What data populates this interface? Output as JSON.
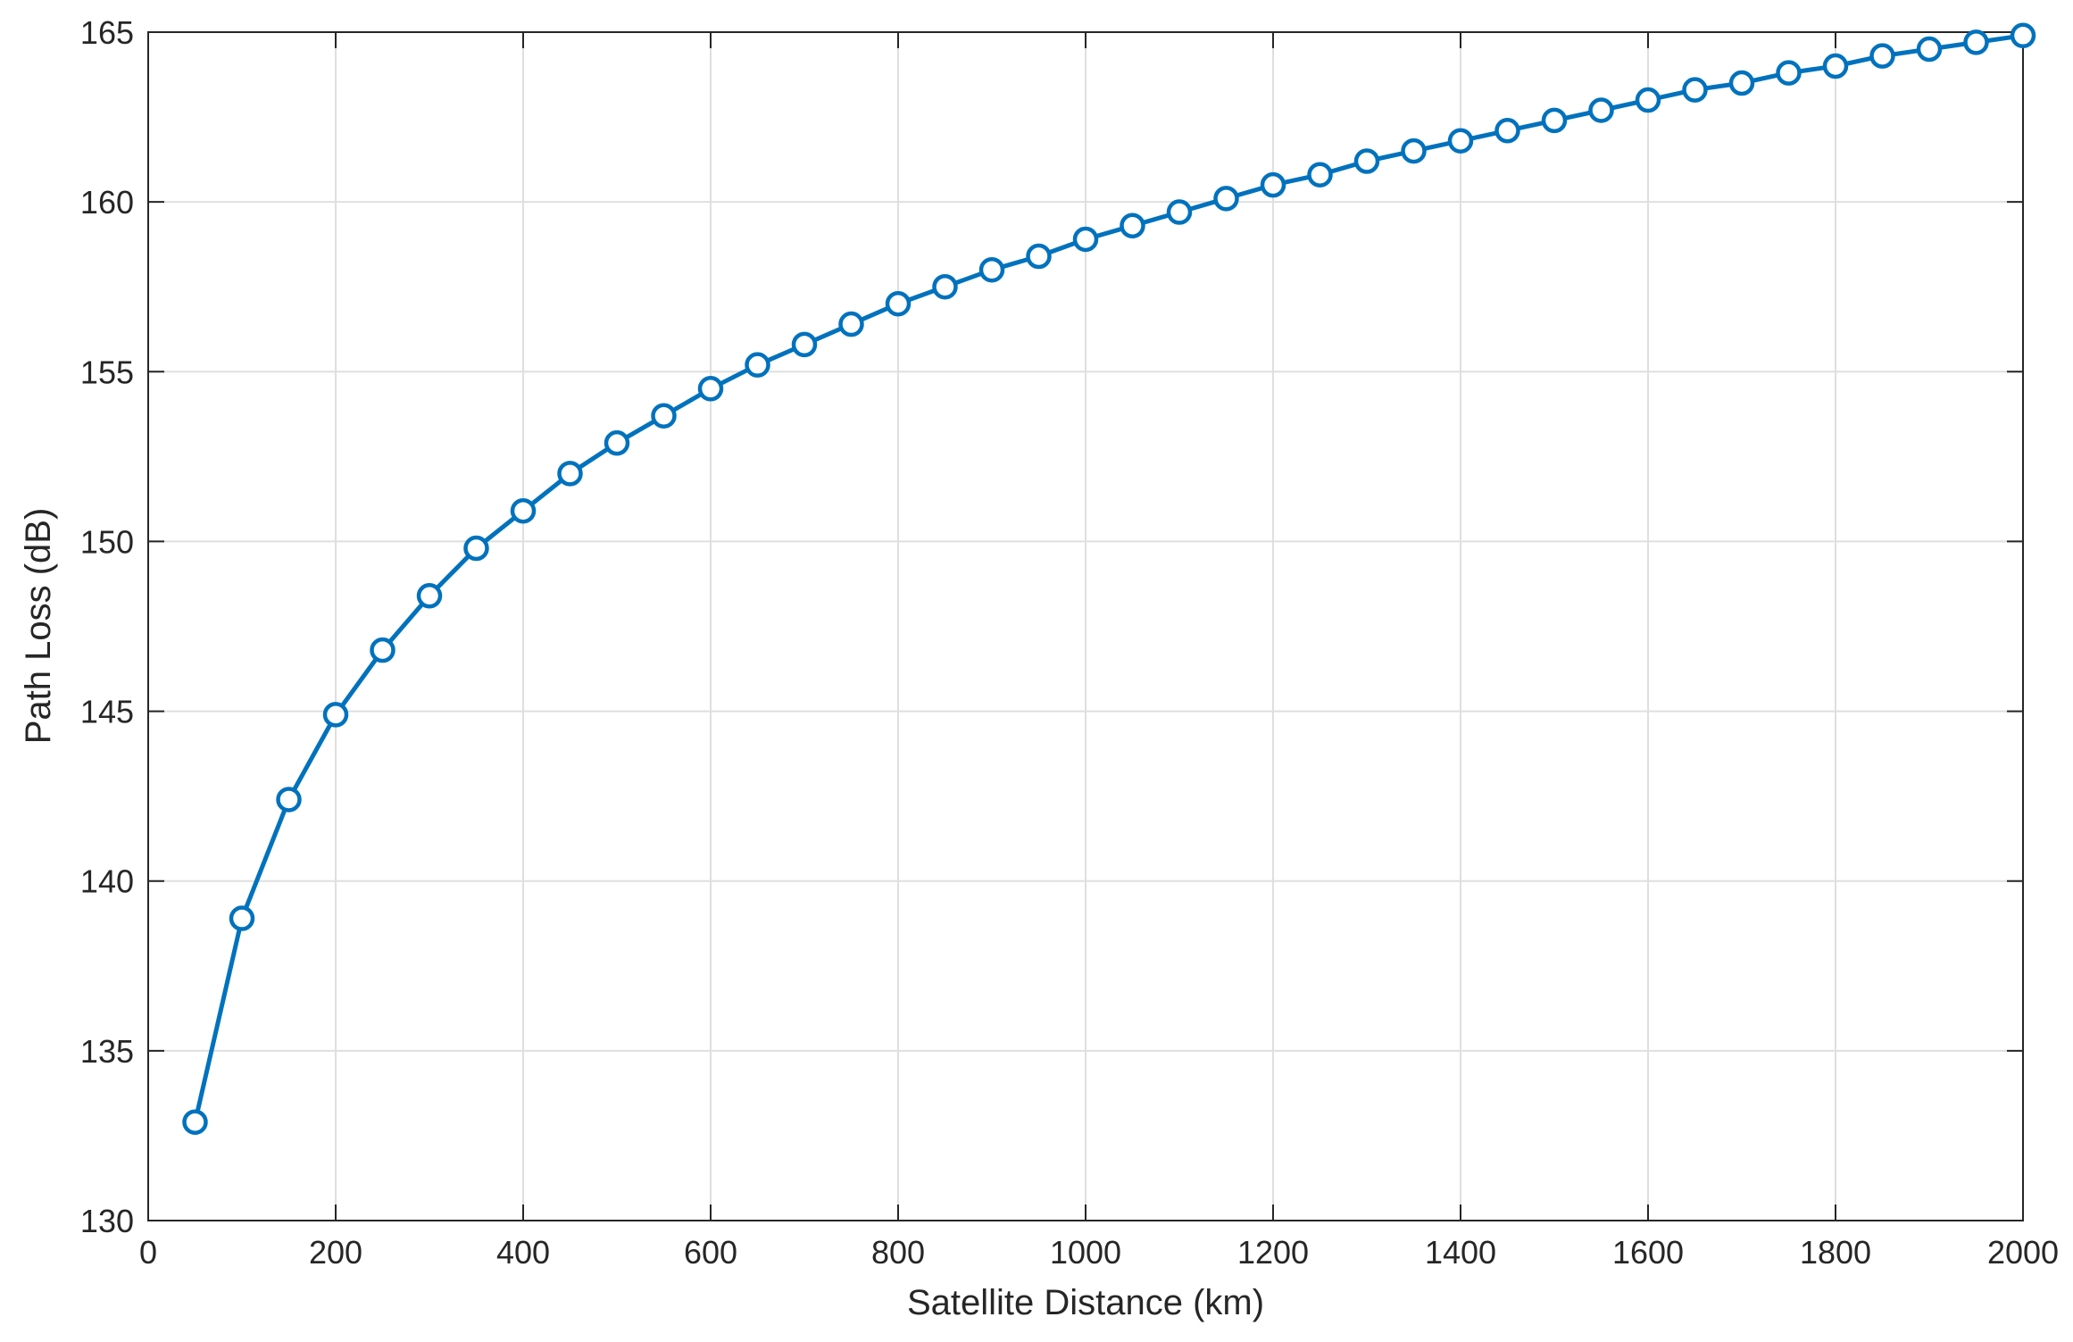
{
  "chart_data": {
    "type": "line",
    "title": "",
    "xlabel": "Satellite Distance (km)",
    "ylabel": "Path Loss (dB)",
    "xlim": [
      0,
      2000
    ],
    "ylim": [
      130,
      165
    ],
    "xticks": [
      "0",
      "200",
      "400",
      "600",
      "800",
      "1000",
      "1200",
      "1400",
      "1600",
      "1800",
      "2000"
    ],
    "yticks": [
      "130",
      "135",
      "140",
      "145",
      "150",
      "155",
      "160",
      "165"
    ],
    "grid": true,
    "legend": "none",
    "series": [
      {
        "color": "#0072BD",
        "marker": "circle",
        "x": [
          50,
          100,
          150,
          200,
          250,
          300,
          350,
          400,
          450,
          500,
          550,
          600,
          650,
          700,
          750,
          800,
          850,
          900,
          950,
          1000,
          1050,
          1100,
          1150,
          1200,
          1250,
          1300,
          1350,
          1400,
          1450,
          1500,
          1550,
          1600,
          1650,
          1700,
          1750,
          1800,
          1850,
          1900,
          1950,
          2000
        ],
        "y": [
          132.9,
          138.9,
          142.4,
          144.9,
          146.8,
          148.4,
          149.8,
          150.9,
          152.0,
          152.9,
          153.7,
          154.5,
          155.2,
          155.8,
          156.4,
          157.0,
          157.5,
          158.0,
          158.4,
          158.9,
          159.3,
          159.7,
          160.1,
          160.5,
          160.8,
          161.2,
          161.5,
          161.8,
          162.1,
          162.4,
          162.7,
          163.0,
          163.3,
          163.5,
          163.8,
          164.0,
          164.3,
          164.5,
          164.7,
          164.9
        ]
      }
    ]
  }
}
